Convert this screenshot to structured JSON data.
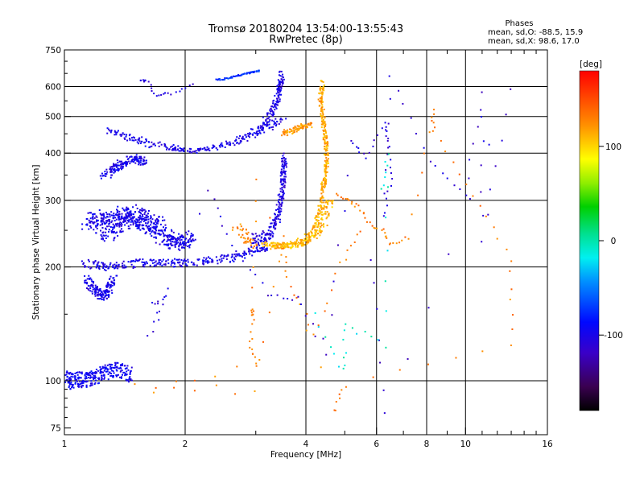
{
  "chart_data": {
    "type": "scatter",
    "title": "Tromsø 20180204 13:54:00-13:55:43",
    "subtitle": "RwPretec (8p)",
    "xlabel": "Frequency [MHz]",
    "ylabel": "Stationary phase Virtual Height [km]",
    "x_scale": "log",
    "y_scale": "log",
    "xlim": [
      1,
      16
    ],
    "ylim": [
      72,
      750
    ],
    "x_ticks": [
      1,
      2,
      4,
      6,
      8,
      10,
      16
    ],
    "y_ticks": [
      75,
      100,
      200,
      300,
      400,
      500,
      600,
      750
    ],
    "grid": true,
    "stats": {
      "heading": "Phases",
      "line_o": "mean, sd,O: -88.5, 15.9",
      "line_x": "mean, sd,X:  98.6, 17.0"
    },
    "colorbar": {
      "label": "[deg]",
      "min": -180,
      "max": 180,
      "ticks": [
        100,
        0,
        -100
      ]
    },
    "series": [
      {
        "traces": [
          {
            "phase": -95,
            "spread": [
              0.012,
              5
            ],
            "count": 5,
            "points": [
              [
                1.01,
                102
              ],
              [
                1.04,
                100
              ],
              [
                1.08,
                101
              ],
              [
                1.12,
                100
              ],
              [
                1.17,
                101
              ],
              [
                1.22,
                104
              ],
              [
                1.27,
                105
              ],
              [
                1.33,
                107
              ],
              [
                1.4,
                106
              ],
              [
                1.47,
                104
              ]
            ]
          },
          {
            "phase": -100,
            "spread": [
              0.02,
              5
            ],
            "count": 5,
            "points": [
              [
                1.14,
                185
              ],
              [
                1.18,
                175
              ],
              [
                1.22,
                170
              ],
              [
                1.26,
                168
              ],
              [
                1.29,
                175
              ],
              [
                1.33,
                185
              ]
            ]
          },
          {
            "phase": -100,
            "spread": [
              0.06,
              9
            ],
            "count": 8,
            "points": [
              [
                1.17,
                260
              ],
              [
                1.22,
                275
              ],
              [
                1.28,
                240
              ],
              [
                1.34,
                265
              ],
              [
                1.4,
                280
              ],
              [
                1.46,
                255
              ],
              [
                1.52,
                285
              ],
              [
                1.58,
                250
              ],
              [
                1.66,
                270
              ],
              [
                1.74,
                245
              ],
              [
                1.84,
                235
              ],
              [
                1.94,
                230
              ],
              [
                2.02,
                240
              ]
            ]
          },
          {
            "phase": -100,
            "spread": [
              0.04,
              5
            ],
            "count": 5,
            "points": [
              [
                1.15,
                205
              ],
              [
                1.25,
                200
              ],
              [
                1.4,
                203
              ],
              [
                1.6,
                205
              ],
              [
                1.8,
                205
              ],
              [
                2.0,
                205
              ],
              [
                2.3,
                208
              ],
              [
                2.6,
                212
              ],
              [
                2.9,
                220
              ],
              [
                3.2,
                225
              ]
            ]
          },
          {
            "phase": -100,
            "spread": [
              0.03,
              8
            ],
            "count": 6,
            "points": [
              [
                1.26,
                350
              ],
              [
                1.34,
                365
              ],
              [
                1.42,
                380
              ],
              [
                1.5,
                390
              ],
              [
                1.58,
                375
              ]
            ]
          },
          {
            "phase": -100,
            "spread": [
              0.05,
              6
            ],
            "count": 4,
            "points": [
              [
                1.3,
                460
              ],
              [
                1.45,
                440
              ],
              [
                1.6,
                425
              ],
              [
                1.8,
                415
              ],
              [
                2.0,
                405
              ],
              [
                2.2,
                408
              ],
              [
                2.5,
                420
              ],
              [
                2.8,
                438
              ],
              [
                3.0,
                455
              ],
              [
                3.2,
                470
              ],
              [
                3.4,
                490
              ]
            ]
          },
          {
            "phase": -105,
            "spread": [
              0.015,
              18
            ],
            "count": 5,
            "points": [
              [
                3.15,
                480
              ],
              [
                3.3,
                520
              ],
              [
                3.4,
                560
              ],
              [
                3.45,
                600
              ],
              [
                3.48,
                640
              ]
            ]
          },
          {
            "phase": -105,
            "spread": [
              0.015,
              10
            ],
            "count": 5,
            "points": [
              [
                2.95,
                235
              ],
              [
                3.15,
                240
              ],
              [
                3.3,
                250
              ],
              [
                3.4,
                270
              ],
              [
                3.46,
                300
              ],
              [
                3.5,
                330
              ],
              [
                3.52,
                360
              ],
              [
                3.54,
                390
              ]
            ]
          },
          {
            "phase": 110,
            "spread": [
              0.04,
              4
            ],
            "count": 6,
            "points": [
              [
                3.2,
                230
              ],
              [
                3.4,
                227
              ],
              [
                3.6,
                228
              ],
              [
                3.8,
                230
              ],
              [
                4.0,
                235
              ],
              [
                4.2,
                245
              ],
              [
                4.35,
                260
              ],
              [
                4.45,
                280
              ],
              [
                4.52,
                300
              ]
            ]
          },
          {
            "phase": 115,
            "spread": [
              0.012,
              12
            ],
            "count": 5,
            "points": [
              [
                4.4,
                310
              ],
              [
                4.45,
                340
              ],
              [
                4.5,
                380
              ],
              [
                4.5,
                420
              ],
              [
                4.45,
                460
              ],
              [
                4.4,
                510
              ],
              [
                4.35,
                560
              ],
              [
                4.4,
                610
              ]
            ]
          },
          {
            "phase": 120,
            "spread": [
              0.02,
              8
            ],
            "count": 4,
            "points": [
              [
                3.5,
                450
              ],
              [
                3.7,
                460
              ],
              [
                3.9,
                470
              ],
              [
                4.1,
                475
              ]
            ]
          },
          {
            "phase": 125,
            "spread": [
              0.03,
              6
            ],
            "count": 3,
            "points": [
              [
                2.7,
                255
              ],
              [
                2.85,
                240
              ],
              [
                2.95,
                230
              ]
            ]
          },
          {
            "phase": -70,
            "spread": [
              0.005,
              3
            ],
            "count": 2,
            "points": [
              [
                2.4,
                625
              ],
              [
                2.55,
                630
              ],
              [
                2.7,
                640
              ],
              [
                2.85,
                650
              ],
              [
                2.95,
                655
              ],
              [
                3.05,
                660
              ]
            ]
          },
          {
            "phase": -110,
            "spread": [
              0.01,
              4
            ],
            "count": 1,
            "points": [
              [
                1.55,
                620
              ],
              [
                1.6,
                625
              ],
              [
                1.7,
                570
              ],
              [
                1.85,
                575
              ],
              [
                2.1,
                610
              ]
            ]
          },
          {
            "phase": 130,
            "spread": [
              0.01,
              3
            ],
            "count": 1,
            "points": [
              [
                4.8,
                310
              ],
              [
                5.1,
                300
              ],
              [
                5.4,
                290
              ],
              [
                5.8,
                260
              ],
              [
                6.2,
                250
              ],
              [
                6.5,
                230
              ],
              [
                7.2,
                240
              ],
              [
                8.3,
                520
              ],
              [
                8.3,
                460
              ],
              [
                10.5,
                310
              ],
              [
                13.0,
                210
              ],
              [
                13.0,
                125
              ],
              [
                5.0,
                95
              ],
              [
                4.7,
                85
              ],
              [
                3.0,
                340
              ],
              [
                2.95,
                155
              ],
              [
                2.95,
                150
              ],
              [
                2.9,
                120
              ],
              [
                3.0,
                110
              ],
              [
                1.5,
                95
              ],
              [
                3.0,
                95
              ],
              [
                3.5,
                240
              ],
              [
                3.6,
                190
              ],
              [
                4.2,
                130
              ],
              [
                4.9,
                205
              ],
              [
                5.5,
                250
              ]
            ]
          },
          {
            "phase": -110,
            "spread": [
              0.01,
              3
            ],
            "count": 1,
            "points": [
              [
                1.65,
                160
              ],
              [
                1.8,
                165
              ],
              [
                1.62,
                130
              ],
              [
                2.3,
                320
              ],
              [
                2.6,
                230
              ],
              [
                3.2,
                170
              ],
              [
                3.8,
                165
              ],
              [
                4.5,
                120
              ],
              [
                5.2,
                430
              ],
              [
                5.6,
                390
              ],
              [
                6.3,
                480
              ],
              [
                6.4,
                430
              ],
              [
                6.5,
                340
              ],
              [
                6.3,
                270
              ],
              [
                6.5,
                640
              ],
              [
                8.2,
                380
              ],
              [
                10.0,
                310
              ],
              [
                11.0,
                580
              ],
              [
                11.0,
                235
              ],
              [
                13.0,
                590
              ],
              [
                6.3,
                80
              ],
              [
                5.8,
                210
              ]
            ]
          },
          {
            "phase": -10,
            "spread": [
              0.01,
              3
            ],
            "count": 1,
            "points": [
              [
                6.2,
                320
              ],
              [
                6.4,
                395
              ],
              [
                6.3,
                125
              ],
              [
                5.0,
                140
              ],
              [
                5.0,
                105
              ],
              [
                4.2,
                150
              ]
            ]
          }
        ]
      }
    ]
  }
}
